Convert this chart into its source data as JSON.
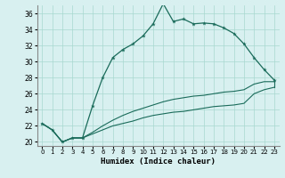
{
  "xlabel": "Humidex (Indice chaleur)",
  "bg_color": "#d8f0f0",
  "grid_color": "#a8d8d0",
  "line_color": "#1a6b5a",
  "xlim": [
    -0.5,
    23.5
  ],
  "ylim": [
    19.5,
    37.0
  ],
  "yticks": [
    20,
    22,
    24,
    26,
    28,
    30,
    32,
    34,
    36
  ],
  "xticks": [
    0,
    1,
    2,
    3,
    4,
    5,
    6,
    7,
    8,
    9,
    10,
    11,
    12,
    13,
    14,
    15,
    16,
    17,
    18,
    19,
    20,
    21,
    22,
    23
  ],
  "main_line": [
    22.3,
    21.5,
    20.0,
    20.5,
    20.5,
    24.5,
    28.0,
    30.5,
    31.5,
    32.2,
    33.2,
    34.7,
    37.2,
    35.0,
    35.3,
    34.7,
    34.8,
    34.7,
    34.2,
    33.5,
    32.2,
    30.5,
    29.0,
    27.7
  ],
  "line2": [
    22.3,
    21.5,
    20.0,
    20.5,
    20.5,
    21.2,
    22.0,
    22.7,
    23.3,
    23.8,
    24.2,
    24.6,
    25.0,
    25.3,
    25.5,
    25.7,
    25.8,
    26.0,
    26.2,
    26.3,
    26.5,
    27.2,
    27.5,
    27.5
  ],
  "line3": [
    22.3,
    21.5,
    20.0,
    20.5,
    20.5,
    21.0,
    21.5,
    22.0,
    22.3,
    22.6,
    23.0,
    23.3,
    23.5,
    23.7,
    23.8,
    24.0,
    24.2,
    24.4,
    24.5,
    24.6,
    24.8,
    26.0,
    26.5,
    26.8
  ]
}
